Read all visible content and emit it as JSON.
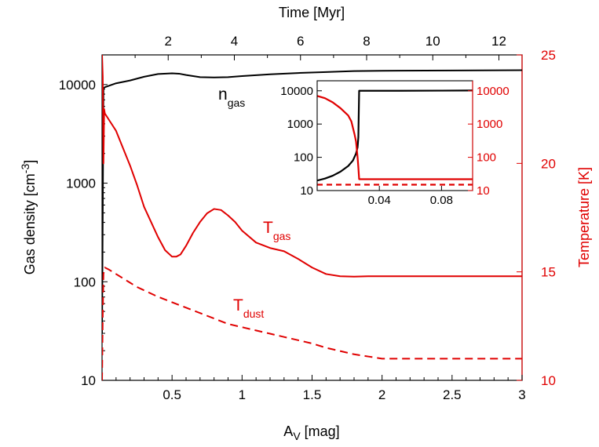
{
  "colors": {
    "black": "#000000",
    "red": "#e00000"
  },
  "chart_data": [
    {
      "type": "line",
      "xlabel": "A",
      "xlabel_sub": "V",
      "xlabel_unit": " [mag]",
      "x2label": "Time [Myr]",
      "ylabel": "Gas density [cm",
      "ylabel_sup": "-3",
      "ylabel_end": "]",
      "y2label": "Temperature [K]",
      "xlim": [
        0,
        3
      ],
      "ylim": [
        10,
        20000
      ],
      "yscale": "log",
      "y2lim": [
        10,
        25
      ],
      "x2lim": [
        0,
        12.7
      ],
      "x_ticks": [
        "0.5",
        "1",
        "1.5",
        "2",
        "2.5",
        "3"
      ],
      "x_tick_values": [
        0.5,
        1,
        1.5,
        2,
        2.5,
        3
      ],
      "y_ticks": [
        "10",
        "100",
        "1000",
        "10000"
      ],
      "y_tick_values": [
        10,
        100,
        1000,
        10000
      ],
      "y2_ticks": [
        "10",
        "15",
        "20",
        "25"
      ],
      "y2_tick_values": [
        10,
        15,
        20,
        25
      ],
      "x2_ticks": [
        "2",
        "4",
        "6",
        "8",
        "10",
        "12"
      ],
      "x2_tick_values": [
        2,
        4,
        6,
        8,
        10,
        12
      ],
      "grid": false,
      "series": [
        {
          "name": "n",
          "name_sub": "gas",
          "axis": "left",
          "color": "#000000",
          "style": "solid",
          "x": [
            0.0,
            0.005,
            0.01,
            0.02,
            0.1,
            0.2,
            0.3,
            0.4,
            0.5,
            0.55,
            0.6,
            0.7,
            0.8,
            0.9,
            1.0,
            1.2,
            1.4,
            1.6,
            1.8,
            2.0,
            2.5,
            3.0
          ],
          "y": [
            30,
            500,
            9200,
            9400,
            10300,
            11000,
            12000,
            12800,
            13000,
            12900,
            12500,
            11900,
            11800,
            11900,
            12200,
            12700,
            13100,
            13400,
            13700,
            13800,
            13900,
            14000
          ]
        },
        {
          "name": "T",
          "name_sub": "gas",
          "axis": "right",
          "color": "#e00000",
          "style": "solid",
          "x": [
            0.0,
            0.005,
            0.01,
            0.015,
            0.02,
            0.05,
            0.1,
            0.15,
            0.2,
            0.25,
            0.3,
            0.35,
            0.4,
            0.45,
            0.5,
            0.53,
            0.56,
            0.6,
            0.65,
            0.7,
            0.75,
            0.8,
            0.85,
            0.9,
            0.95,
            1.0,
            1.1,
            1.2,
            1.3,
            1.4,
            1.5,
            1.6,
            1.7,
            1.8,
            1.9,
            2.0,
            2.5,
            3.0
          ],
          "y": [
            25.0,
            24.0,
            20.0,
            22.5,
            22.3,
            22.0,
            21.5,
            20.7,
            19.9,
            19.0,
            18.0,
            17.3,
            16.6,
            16.0,
            15.7,
            15.7,
            15.8,
            16.2,
            16.8,
            17.3,
            17.7,
            17.9,
            17.85,
            17.6,
            17.3,
            16.9,
            16.35,
            16.1,
            15.95,
            15.6,
            15.2,
            14.9,
            14.8,
            14.78,
            14.8,
            14.8,
            14.8,
            14.8
          ]
        },
        {
          "name": "T",
          "name_sub": "dust",
          "axis": "right",
          "color": "#e00000",
          "style": "dashed",
          "x": [
            0.0,
            0.005,
            0.01,
            0.02,
            0.05,
            0.1,
            0.15,
            0.2,
            0.25,
            0.3,
            0.4,
            0.5,
            0.6,
            0.7,
            0.8,
            0.9,
            1.0,
            1.1,
            1.2,
            1.3,
            1.4,
            1.5,
            1.6,
            1.7,
            1.8,
            1.9,
            2.0,
            2.5,
            3.0
          ],
          "y": [
            10.0,
            13.0,
            14.9,
            15.2,
            15.1,
            14.9,
            14.7,
            14.5,
            14.3,
            14.15,
            13.85,
            13.6,
            13.35,
            13.1,
            12.85,
            12.6,
            12.45,
            12.3,
            12.15,
            12.0,
            11.85,
            11.7,
            11.5,
            11.35,
            11.2,
            11.1,
            11.0,
            11.0,
            11.0
          ]
        }
      ]
    },
    {
      "type": "line",
      "inset": true,
      "xlim": [
        0,
        0.1
      ],
      "ylim": [
        10,
        20000
      ],
      "yscale": "log",
      "y2lim": [
        10,
        20000
      ],
      "y2scale": "log",
      "x_ticks": [
        "0.04",
        "0.08"
      ],
      "x_tick_values": [
        0.04,
        0.08
      ],
      "y_ticks": [
        "10",
        "100",
        "1000",
        "10000"
      ],
      "y_tick_values": [
        10,
        100,
        1000,
        10000
      ],
      "y2_ticks": [
        "10",
        "100",
        "1000",
        "10000"
      ],
      "y2_tick_values": [
        10,
        100,
        1000,
        10000
      ],
      "series": [
        {
          "color": "#000000",
          "style": "solid",
          "x": [
            0.0,
            0.005,
            0.01,
            0.015,
            0.02,
            0.023,
            0.025,
            0.026,
            0.0265,
            0.027,
            0.03,
            0.05,
            0.08,
            0.1
          ],
          "y": [
            20,
            23,
            28,
            37,
            55,
            80,
            130,
            200,
            400,
            10000,
            10000,
            10000,
            10100,
            10200
          ]
        },
        {
          "color": "#e00000",
          "style": "solid",
          "x": [
            0.0,
            0.005,
            0.01,
            0.015,
            0.02,
            0.022,
            0.024,
            0.025,
            0.026,
            0.0265,
            0.027,
            0.03,
            0.05,
            0.08,
            0.1
          ],
          "y": [
            7000,
            6000,
            4500,
            3000,
            1800,
            1200,
            500,
            300,
            100,
            50,
            22,
            22,
            22,
            22,
            22
          ]
        },
        {
          "color": "#e00000",
          "style": "dashed",
          "x": [
            0.0,
            0.1
          ],
          "y": [
            15,
            15
          ]
        }
      ]
    }
  ]
}
